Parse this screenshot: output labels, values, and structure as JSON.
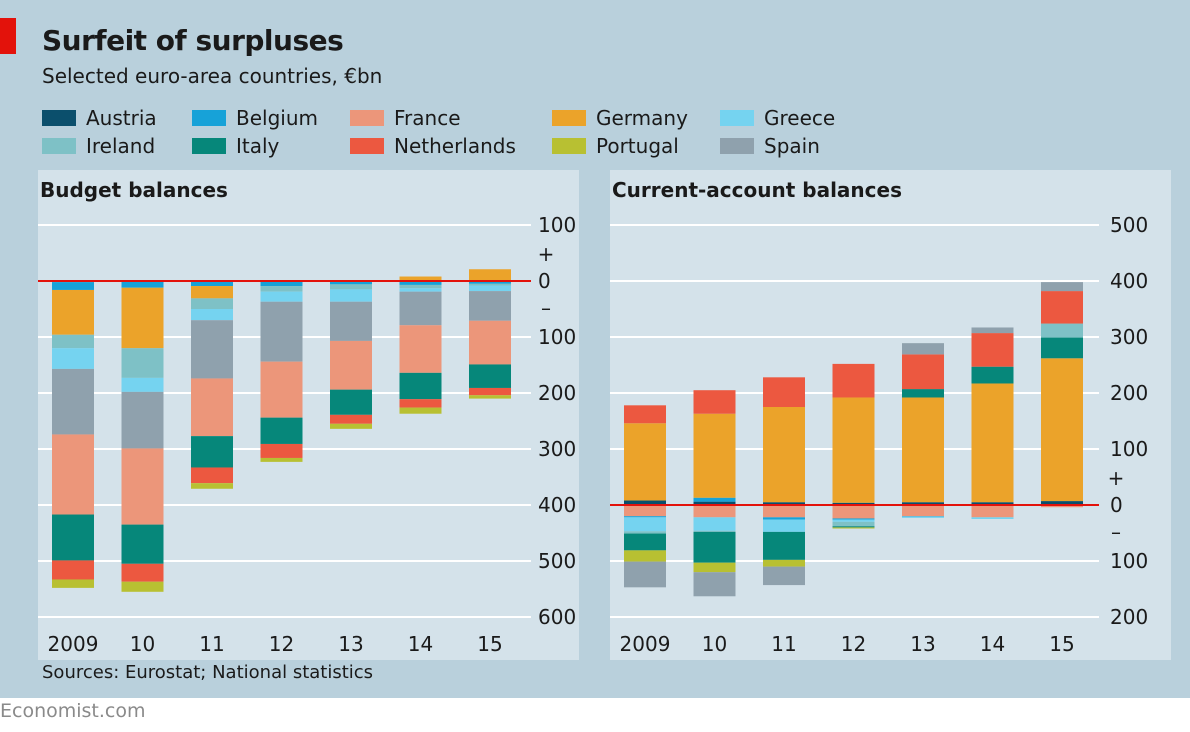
{
  "title": "Surfeit of surpluses",
  "subtitle": "Selected euro-area countries, €bn",
  "source": "Sources: Eurostat; National statistics",
  "footer": "Economist.com",
  "legend": [
    {
      "label": "Austria",
      "color": "#0b4f6c"
    },
    {
      "label": "Belgium",
      "color": "#17a2d8"
    },
    {
      "label": "France",
      "color": "#ec967a"
    },
    {
      "label": "Germany",
      "color": "#eba32a"
    },
    {
      "label": "Greece",
      "color": "#75d3f0"
    },
    {
      "label": "Ireland",
      "color": "#7ec1c6"
    },
    {
      "label": "Italy",
      "color": "#06877a"
    },
    {
      "label": "Netherlands",
      "color": "#ec5840"
    },
    {
      "label": "Portugal",
      "color": "#b8c032"
    },
    {
      "label": "Spain",
      "color": "#8fa1ad"
    }
  ],
  "chart_data": [
    {
      "type": "bar",
      "stacked": true,
      "title": "Budget balances",
      "categories": [
        "2009",
        "10",
        "11",
        "12",
        "13",
        "14",
        "15"
      ],
      "ylim": [
        -600,
        100
      ],
      "yticks": [
        100,
        0,
        -100,
        -200,
        -300,
        -400,
        -500,
        -600
      ],
      "ytick_labels": [
        "100",
        "0",
        "100",
        "200",
        "300",
        "400",
        "500",
        "600"
      ],
      "sign_labels": [
        "+",
        "–"
      ],
      "stack_order": [
        "Austria",
        "Belgium",
        "Germany",
        "Ireland",
        "Greece",
        "Spain",
        "France",
        "Italy",
        "Netherlands",
        "Portugal"
      ],
      "series": [
        {
          "name": "Austria",
          "values": [
            -2,
            -1,
            -1,
            -1,
            -1,
            -1,
            -1
          ]
        },
        {
          "name": "Belgium",
          "values": [
            -14,
            -11,
            -8,
            -8,
            -5,
            -6,
            -4
          ]
        },
        {
          "name": "Germany",
          "values": [
            -80,
            -108,
            -22,
            0,
            0,
            8,
            21
          ]
        },
        {
          "name": "Ireland",
          "values": [
            -24,
            -53,
            -19,
            -10,
            -9,
            -6,
            -3
          ]
        },
        {
          "name": "Greece",
          "values": [
            -37,
            -25,
            -20,
            -18,
            -22,
            -6,
            -10
          ]
        },
        {
          "name": "Spain",
          "values": [
            -117,
            -101,
            -104,
            -107,
            -70,
            -60,
            -53
          ]
        },
        {
          "name": "France",
          "values": [
            -143,
            -136,
            -103,
            -100,
            -87,
            -85,
            -78
          ]
        },
        {
          "name": "Italy",
          "values": [
            -82,
            -70,
            -56,
            -47,
            -45,
            -47,
            -42
          ]
        },
        {
          "name": "Netherlands",
          "values": [
            -34,
            -32,
            -28,
            -25,
            -16,
            -15,
            -13
          ]
        },
        {
          "name": "Portugal",
          "values": [
            -15,
            -18,
            -10,
            -7,
            -9,
            -11,
            -6
          ]
        }
      ]
    },
    {
      "type": "bar",
      "stacked": true,
      "title": "Current-account balances",
      "categories": [
        "2009",
        "10",
        "11",
        "12",
        "13",
        "14",
        "15"
      ],
      "ylim": [
        -200,
        500
      ],
      "yticks": [
        500,
        400,
        300,
        200,
        100,
        0,
        -100,
        -200
      ],
      "ytick_labels": [
        "500",
        "400",
        "300",
        "200",
        "100",
        "0",
        "100",
        "200"
      ],
      "sign_labels": [
        "+",
        "–"
      ],
      "positive_order": [
        "Austria",
        "Belgium",
        "Germany",
        "Italy",
        "Ireland",
        "Netherlands",
        "Spain"
      ],
      "negative_order": [
        "France",
        "Belgium",
        "Greece",
        "Ireland",
        "Italy",
        "Portugal",
        "Spain"
      ],
      "series": [
        {
          "name": "Austria",
          "values": [
            8,
            6,
            5,
            4,
            5,
            5,
            7
          ]
        },
        {
          "name": "Belgium",
          "values": [
            -2,
            7,
            -4,
            -2,
            -1,
            0,
            0
          ]
        },
        {
          "name": "France",
          "values": [
            -20,
            -22,
            -22,
            -24,
            -20,
            -22,
            -4
          ]
        },
        {
          "name": "Germany",
          "values": [
            138,
            150,
            170,
            188,
            187,
            212,
            255
          ]
        },
        {
          "name": "Greece",
          "values": [
            -25,
            -24,
            -22,
            -4,
            -2,
            -3,
            0
          ]
        },
        {
          "name": "Ireland",
          "values": [
            -4,
            -2,
            0,
            -8,
            0,
            0,
            25
          ]
        },
        {
          "name": "Italy",
          "values": [
            -30,
            -55,
            -50,
            -2,
            15,
            30,
            37
          ]
        },
        {
          "name": "Netherlands",
          "values": [
            32,
            42,
            53,
            60,
            62,
            60,
            58
          ]
        },
        {
          "name": "Portugal",
          "values": [
            -20,
            -17,
            -12,
            -2,
            0,
            0,
            0
          ]
        },
        {
          "name": "Spain",
          "values": [
            -46,
            -43,
            -33,
            0,
            20,
            10,
            16
          ]
        }
      ]
    }
  ]
}
